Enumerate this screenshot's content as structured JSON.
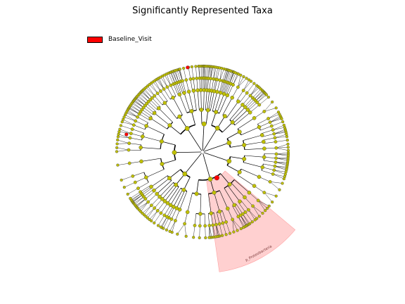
{
  "figure": {
    "title": "Significantly Represented Taxa"
  },
  "legend": {
    "items": [
      {
        "label": "Baseline_Visit",
        "color": "#ff0000"
      }
    ]
  },
  "highlight": {
    "label": "p_Proteobacteria",
    "color": "#ffcccc"
  },
  "node_colors": {
    "default": "#bfbf00",
    "significant": "#ff0000",
    "edge": "#000000"
  }
}
